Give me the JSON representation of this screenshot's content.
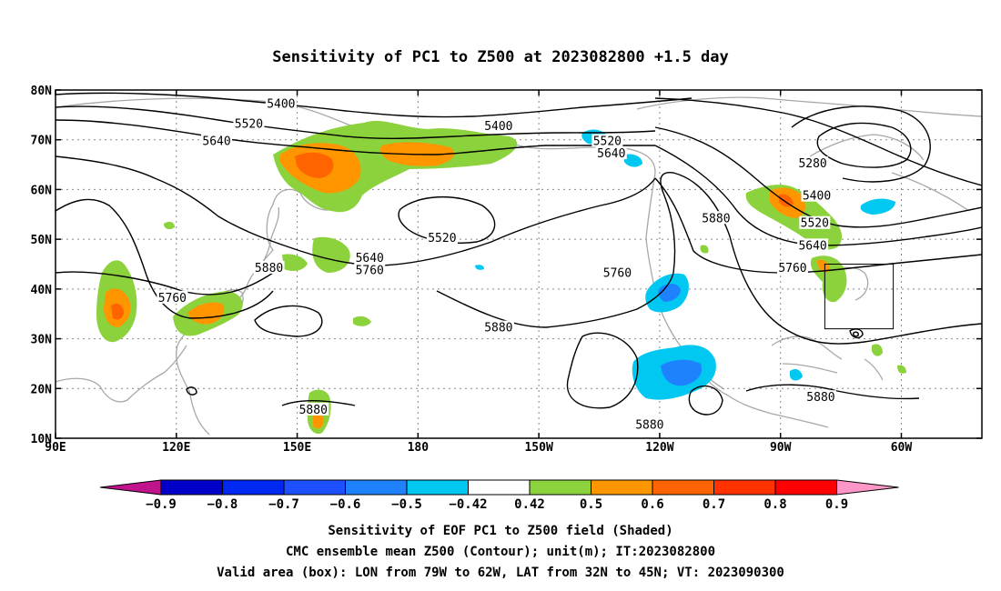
{
  "title": "Sensitivity of PC1 to Z500 at 2023082800 +1.5 day",
  "map": {
    "lon_range": [
      90,
      320
    ],
    "lat_range": [
      10,
      80
    ],
    "x_ticks": [
      {
        "lon": 90,
        "label": "90E"
      },
      {
        "lon": 120,
        "label": "120E"
      },
      {
        "lon": 150,
        "label": "150E"
      },
      {
        "lon": 180,
        "label": "180"
      },
      {
        "lon": 210,
        "label": "150W"
      },
      {
        "lon": 240,
        "label": "120W"
      },
      {
        "lon": 270,
        "label": "90W"
      },
      {
        "lon": 300,
        "label": "60W"
      }
    ],
    "y_ticks": [
      {
        "lat": 80,
        "label": "80N"
      },
      {
        "lat": 70,
        "label": "70N"
      },
      {
        "lat": 60,
        "label": "60N"
      },
      {
        "lat": 50,
        "label": "50N"
      },
      {
        "lat": 40,
        "label": "40N"
      },
      {
        "lat": 30,
        "label": "30N"
      },
      {
        "lat": 20,
        "label": "20N"
      },
      {
        "lat": 10,
        "label": "10N"
      }
    ],
    "valid_box": {
      "lon_min": 281,
      "lon_max": 298,
      "lat_min": 32,
      "lat_max": 45
    },
    "contour_labels": [
      {
        "text": "5400",
        "lon": 146,
        "lat": 77
      },
      {
        "text": "5520",
        "lon": 138,
        "lat": 73
      },
      {
        "text": "5640",
        "lon": 130,
        "lat": 69.5
      },
      {
        "text": "5400",
        "lon": 200,
        "lat": 72.5
      },
      {
        "text": "5520",
        "lon": 227,
        "lat": 69.5
      },
      {
        "text": "5640",
        "lon": 228,
        "lat": 67
      },
      {
        "text": "5280",
        "lon": 278,
        "lat": 65
      },
      {
        "text": "5400",
        "lon": 279,
        "lat": 58.5
      },
      {
        "text": "5520",
        "lon": 278.5,
        "lat": 53
      },
      {
        "text": "5640",
        "lon": 278,
        "lat": 48.5
      },
      {
        "text": "5760",
        "lon": 273,
        "lat": 44
      },
      {
        "text": "5880",
        "lon": 254,
        "lat": 54
      },
      {
        "text": "5520",
        "lon": 186,
        "lat": 50
      },
      {
        "text": "5640",
        "lon": 168,
        "lat": 46
      },
      {
        "text": "5760",
        "lon": 168,
        "lat": 43.5
      },
      {
        "text": "5880",
        "lon": 143,
        "lat": 44
      },
      {
        "text": "5760",
        "lon": 119,
        "lat": 38
      },
      {
        "text": "5880",
        "lon": 200,
        "lat": 32
      },
      {
        "text": "5760",
        "lon": 229.5,
        "lat": 43
      },
      {
        "text": "5880",
        "lon": 237.5,
        "lat": 12.5
      },
      {
        "text": "5880",
        "lon": 280,
        "lat": 18
      },
      {
        "text": "5880",
        "lon": 154,
        "lat": 15.5
      }
    ],
    "shading": {
      "levels": [
        -0.9,
        -0.8,
        -0.7,
        -0.6,
        -0.5,
        -0.42,
        0.42,
        0.5,
        0.6,
        0.7,
        0.8,
        0.9
      ],
      "colors": [
        "#c0138c",
        "#0000c8",
        "#0028f0",
        "#1e50ff",
        "#1e82ff",
        "#00c8f0",
        "#ffffff",
        "#8cd23c",
        "#ff9600",
        "#ff6400",
        "#ff3200",
        "#ff0000",
        "#ff96c8"
      ]
    }
  },
  "colorbar": {
    "labels": [
      "−0.9",
      "−0.8",
      "−0.7",
      "−0.6",
      "−0.5",
      "−0.42",
      "0.42",
      "0.5",
      "0.6",
      "0.7",
      "0.8",
      "0.9"
    ]
  },
  "caption": {
    "line1": "Sensitivity of EOF PC1 to Z500 field (Shaded)",
    "line2": "CMC ensemble mean Z500 (Contour); unit(m); IT:2023082800",
    "line3": "Valid area (box): LON from 79W to 62W, LAT from 32N to 45N; VT: 2023090300"
  }
}
